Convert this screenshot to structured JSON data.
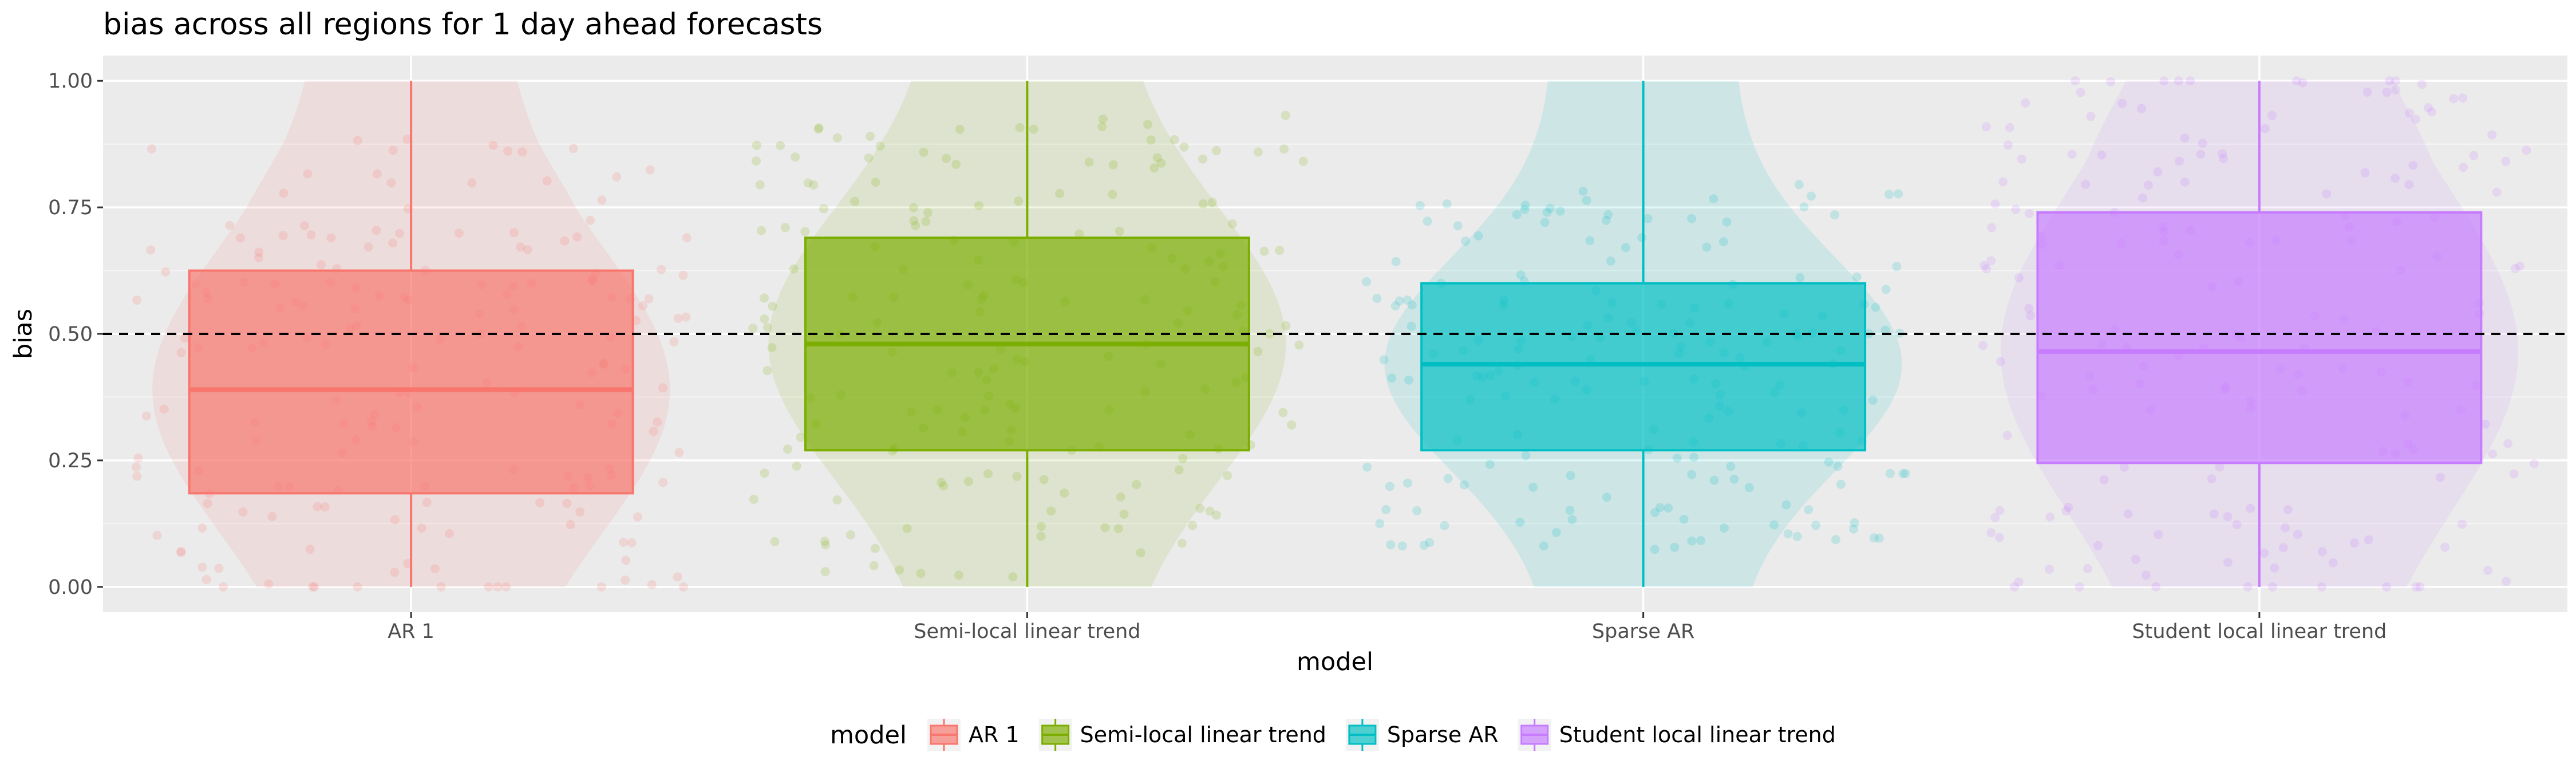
{
  "chart_data": {
    "type": "box",
    "title": "bias across all regions for 1 day ahead forecasts",
    "xlabel": "model",
    "ylabel": "bias",
    "ylim": [
      -0.05,
      1.05
    ],
    "yticks": [
      0.0,
      0.25,
      0.5,
      0.75,
      1.0
    ],
    "ytick_labels": [
      "0.00",
      "0.25",
      "0.50",
      "0.75",
      "1.00"
    ],
    "reference_line": {
      "y": 0.5,
      "style": "dashed"
    },
    "grid": true,
    "legend": {
      "title": "model",
      "position": "bottom"
    },
    "categories": [
      "AR 1",
      "Semi-local linear trend",
      "Sparse AR",
      "Student local linear trend"
    ],
    "series": [
      {
        "name": "AR 1",
        "color": "#F8766D",
        "min": 0.0,
        "q1": 0.185,
        "median": 0.39,
        "q3": 0.625,
        "max": 1.0
      },
      {
        "name": "Semi-local linear trend",
        "color": "#7CAE00",
        "min": 0.0,
        "q1": 0.27,
        "median": 0.48,
        "q3": 0.69,
        "max": 1.0
      },
      {
        "name": "Sparse AR",
        "color": "#00BFC4",
        "min": 0.0,
        "q1": 0.27,
        "median": 0.44,
        "q3": 0.6,
        "max": 1.0
      },
      {
        "name": "Student local linear trend",
        "color": "#C77CFF",
        "min": 0.0,
        "q1": 0.245,
        "median": 0.465,
        "q3": 0.74,
        "max": 1.0
      }
    ]
  }
}
